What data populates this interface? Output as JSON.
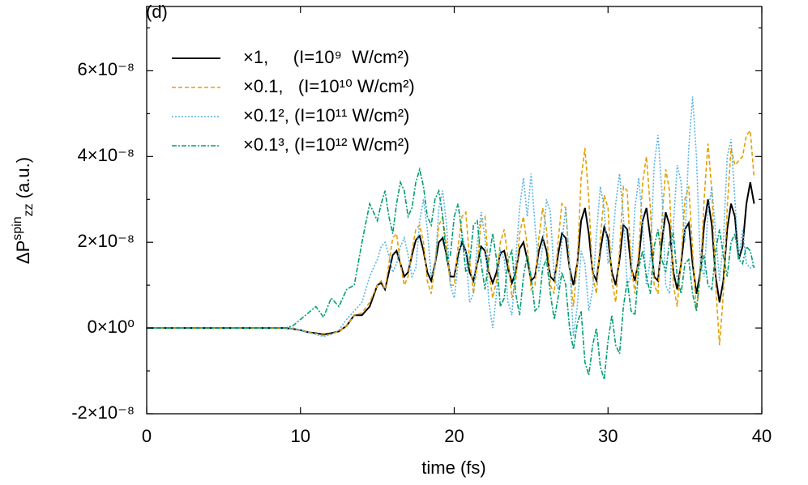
{
  "chart_data": {
    "type": "line",
    "panel_label": "(d)",
    "xlabel": "time (fs)",
    "ylabel": {
      "base": "ΔP",
      "sup": "spin",
      "sub": "zz",
      "unit": " (a.u.)"
    },
    "xlim": [
      0,
      40
    ],
    "xticks": [
      0,
      10,
      20,
      30,
      40
    ],
    "ylim": [
      -2e-08,
      7.5e-08
    ],
    "yticks": [
      {
        "value": -2e-08,
        "label": "-2×10⁻⁸"
      },
      {
        "value": 0,
        "label": "0×10⁰"
      },
      {
        "value": 2e-08,
        "label": "2×10⁻⁸"
      },
      {
        "value": 4e-08,
        "label": "4×10⁻⁸"
      },
      {
        "value": 6e-08,
        "label": "6×10⁻⁸"
      }
    ],
    "minor_yticks": [
      -1e-08,
      1e-08,
      3e-08,
      5e-08,
      7e-08
    ],
    "legend": "upper left",
    "x": [
      0,
      1,
      2,
      3,
      4,
      5,
      6,
      7,
      8,
      9,
      9.5,
      10,
      10.5,
      11,
      11.5,
      12,
      12.5,
      13,
      13.5,
      14,
      14.5,
      15,
      15.25,
      15.5,
      15.75,
      16,
      16.25,
      16.5,
      16.75,
      17,
      17.25,
      17.5,
      17.75,
      18,
      18.25,
      18.5,
      18.75,
      19,
      19.25,
      19.5,
      19.75,
      20,
      20.25,
      20.5,
      20.75,
      21,
      21.25,
      21.5,
      21.75,
      22,
      22.25,
      22.5,
      22.75,
      23,
      23.25,
      23.5,
      23.75,
      24,
      24.25,
      24.5,
      24.75,
      25,
      25.25,
      25.5,
      25.75,
      26,
      26.25,
      26.5,
      26.75,
      27,
      27.25,
      27.5,
      27.75,
      28,
      28.25,
      28.5,
      28.75,
      29,
      29.25,
      29.5,
      29.75,
      30,
      30.25,
      30.5,
      30.75,
      31,
      31.25,
      31.5,
      31.75,
      32,
      32.25,
      32.5,
      32.75,
      33,
      33.25,
      33.5,
      33.75,
      34,
      34.25,
      34.5,
      34.75,
      35,
      35.25,
      35.5,
      35.75,
      36,
      36.25,
      36.5,
      36.75,
      37,
      37.25,
      37.5,
      37.75,
      38,
      38.25,
      38.5,
      38.75,
      39,
      39.25,
      39.5
    ],
    "series": [
      {
        "name": "×1,     (I=10⁹  W/cm²)",
        "color": "#000000",
        "dash": "none",
        "values": [
          0,
          0,
          0,
          0,
          0,
          0,
          0,
          0,
          0,
          0,
          -2e-10,
          -5e-10,
          -1e-09,
          -1.2e-09,
          -1.5e-09,
          -1.2e-09,
          -8e-10,
          5e-10,
          3e-09,
          3e-09,
          5e-09,
          1e-08,
          1.05e-08,
          9e-09,
          1.3e-08,
          1.7e-08,
          1.8e-08,
          1.5e-08,
          1.2e-08,
          1.3e-08,
          1.7e-08,
          2.05e-08,
          2.15e-08,
          1.8e-08,
          1.3e-08,
          1.1e-08,
          1.5e-08,
          2e-08,
          2.1e-08,
          1.7e-08,
          1.2e-08,
          1.2e-08,
          1.7e-08,
          2e-08,
          1.8e-08,
          1.3e-08,
          1.1e-08,
          1.5e-08,
          1.9e-08,
          1.8e-08,
          1.3e-08,
          1.05e-08,
          1.3e-08,
          1.75e-08,
          1.8e-08,
          1.4e-08,
          1.05e-08,
          1.3e-08,
          1.85e-08,
          2e-08,
          1.6e-08,
          1.1e-08,
          1.2e-08,
          1.8e-08,
          2.1e-08,
          1.8e-08,
          1.2e-08,
          1.1e-08,
          1.7e-08,
          2.2e-08,
          2.1e-08,
          1.4e-08,
          1e-08,
          1.5e-08,
          2.5e-08,
          2.8e-08,
          2.2e-08,
          1.3e-08,
          1.1e-08,
          1.8e-08,
          2.35e-08,
          2.1e-08,
          1.3e-08,
          1e-08,
          1.6e-08,
          2.4e-08,
          2.3e-08,
          1.4e-08,
          1.1e-08,
          1.6e-08,
          2.5e-08,
          2.8e-08,
          2.1e-08,
          1.2e-08,
          1.1e-08,
          2e-08,
          2.7e-08,
          2.4e-08,
          1.3e-08,
          9e-09,
          1.5e-08,
          2.3e-08,
          2.45e-08,
          1.5e-08,
          8e-09,
          1.3e-08,
          2.4e-08,
          3e-08,
          2.4e-08,
          1.2e-08,
          6e-09,
          1.1e-08,
          2.3e-08,
          2.9e-08,
          2.6e-08,
          1.6e-08,
          1.9e-08,
          2.9e-08,
          3.4e-08,
          2.9e-08
        ]
      },
      {
        "name": "×0.1,   (I=10¹⁰ W/cm²)",
        "color": "#e69f00",
        "dash": "5,3",
        "values": [
          0,
          0,
          0,
          0,
          0,
          0,
          0,
          0,
          0,
          0,
          -2e-10,
          -5e-10,
          -1e-09,
          -1.3e-09,
          -1.7e-09,
          -1.4e-09,
          -8e-10,
          5e-10,
          3e-09,
          3.5e-09,
          6e-09,
          1e-08,
          1.1e-08,
          9e-09,
          1.5e-08,
          2.1e-08,
          2.2e-08,
          1.5e-08,
          1e-08,
          1.2e-08,
          1.8e-08,
          2.3e-08,
          2.4e-08,
          2e-08,
          1.1e-08,
          8e-09,
          1.5e-08,
          2.4e-08,
          2.6e-08,
          1.9e-08,
          1e-08,
          1e-08,
          1.9e-08,
          2.6e-08,
          2.7e-08,
          1.6e-08,
          8e-09,
          1.5e-08,
          2.5e-08,
          2.6e-08,
          1.3e-08,
          7e-09,
          1.1e-08,
          2e-08,
          2.3e-08,
          1.6e-08,
          7e-09,
          1.1e-08,
          2.2e-08,
          2.6e-08,
          1.9e-08,
          9e-09,
          1e-08,
          2.1e-08,
          2.8e-08,
          2.3e-08,
          1e-08,
          8e-09,
          2e-08,
          2.9e-08,
          2.8e-08,
          1.4e-08,
          5e-09,
          1.5e-08,
          3.5e-08,
          4.2e-08,
          3e-08,
          1.2e-08,
          8e-09,
          2.1e-08,
          3.1e-08,
          2.8e-08,
          1.1e-08,
          6e-09,
          1.8e-08,
          3.3e-08,
          3.2e-08,
          1.5e-08,
          8e-09,
          1.8e-08,
          3.4e-08,
          4e-08,
          2.8e-08,
          1e-08,
          8e-09,
          2.5e-08,
          3.7e-08,
          3.2e-08,
          1e-08,
          5e-09,
          1.6e-08,
          3e-08,
          3.3e-08,
          1.8e-08,
          4e-09,
          1.2e-08,
          3e-08,
          4.3e-08,
          3.2e-08,
          1e-08,
          -4e-09,
          8e-09,
          2.8e-08,
          4.2e-08,
          3.8e-08,
          3.9e-08,
          4e-08,
          4.5e-08,
          4.6e-08,
          3.5e-08
        ]
      },
      {
        "name": "×0.1², (I=10¹¹ W/cm²)",
        "color": "#56b4e9",
        "dash": "2,2",
        "values": [
          0,
          0,
          0,
          0,
          0,
          0,
          0,
          0,
          0,
          0,
          0,
          -5e-10,
          -1e-09,
          -1.5e-09,
          -2e-09,
          -1.5e-09,
          -5e-10,
          2e-09,
          4e-09,
          6e-09,
          1.2e-08,
          1.6e-08,
          1.9e-08,
          2e-08,
          1.7e-08,
          1.3e-08,
          1.5e-08,
          1.9e-08,
          2.1e-08,
          1.7e-08,
          1.2e-08,
          1.4e-08,
          2.5e-08,
          3e-08,
          2.3e-08,
          1.2e-08,
          1.4e-08,
          2.8e-08,
          3.2e-08,
          2.4e-08,
          1e-08,
          7e-09,
          1.5e-08,
          2.2e-08,
          1.8e-08,
          6e-09,
          8e-09,
          2e-08,
          2.7e-08,
          2.1e-08,
          6e-09,
          0,
          8e-09,
          1.8e-08,
          1.6e-08,
          6e-09,
          3e-09,
          1.6e-08,
          2.8e-08,
          3.5e-08,
          2.6e-08,
          3.6e-08,
          2.4e-08,
          1.3e-08,
          1.9e-08,
          3e-08,
          2.7e-08,
          1.2e-08,
          9e-09,
          2e-08,
          2.8e-08,
          1.5e-08,
          -2e-09,
          5e-09,
          1.8e-08,
          1.5e-08,
          4e-09,
          9e-09,
          2.2e-08,
          3.3e-08,
          2.8e-08,
          1.5e-08,
          1.8e-08,
          2.9e-08,
          3.6e-08,
          2.6e-08,
          1e-08,
          1.2e-08,
          2.8e-08,
          3.5e-08,
          2.4e-08,
          1e-08,
          1.6e-08,
          3.8e-08,
          4.5e-08,
          3.2e-08,
          1e-08,
          8e-09,
          2.4e-08,
          3.8e-08,
          3.4e-08,
          2e-08,
          4.2e-08,
          5.4e-08,
          4e-08,
          1.5e-08,
          1.2e-08,
          2.7e-08,
          3.3e-08,
          2.2e-08,
          1.1e-08,
          2e-08,
          4e-08,
          4.4e-08,
          3e-08,
          1.6e-08,
          2.3e-08,
          1.5e-08,
          1.4e-08,
          1.5e-08
        ]
      },
      {
        "name": "×0.1³, (I=10¹² W/cm²)",
        "color": "#009e73",
        "dash": "6,2,2,2",
        "values": [
          0,
          0,
          0,
          0,
          0,
          0,
          0,
          0,
          0,
          0,
          5e-10,
          2e-09,
          3.5e-09,
          5e-09,
          2.5e-09,
          7e-09,
          5e-09,
          9e-09,
          1e-08,
          2e-08,
          2.9e-08,
          2.5e-08,
          2.9e-08,
          3.2e-08,
          2.6e-08,
          2.2e-08,
          2.9e-08,
          3.4e-08,
          3.2e-08,
          2.6e-08,
          2.8e-08,
          3.4e-08,
          3.7e-08,
          3.3e-08,
          2.6e-08,
          2.4e-08,
          3e-08,
          3.2e-08,
          2.6e-08,
          1.6e-08,
          1.7e-08,
          2.6e-08,
          2.9e-08,
          2.2e-08,
          1.3e-08,
          1.5e-08,
          2.4e-08,
          2.5e-08,
          1.5e-08,
          9e-09,
          1.6e-08,
          2.2e-08,
          1.6e-08,
          5e-09,
          7e-09,
          1.6e-08,
          1.8e-08,
          8e-09,
          3e-09,
          1.2e-08,
          1.7e-08,
          1.2e-08,
          4e-09,
          5e-09,
          1.4e-08,
          1.6e-08,
          8e-09,
          2e-09,
          7e-09,
          1.3e-08,
          1e-08,
          0,
          -5e-09,
          1e-09,
          4e-09,
          -8e-09,
          -1.1e-08,
          -4e-09,
          0,
          -9e-09,
          -1.2e-08,
          -3e-09,
          3e-09,
          -4e-09,
          -6e-09,
          5e-09,
          1.1e-08,
          4e-09,
          3e-09,
          1.4e-08,
          1.8e-08,
          1.2e-08,
          8e-09,
          1.9e-08,
          2.3e-08,
          1.6e-08,
          1.3e-08,
          2e-08,
          2.2e-08,
          1.2e-08,
          8e-09,
          1.5e-08,
          1.6e-08,
          8e-09,
          4e-09,
          1.3e-08,
          1.7e-08,
          1e-08,
          9e-09,
          1.8e-08,
          2.3e-08,
          1.7e-08,
          1.2e-08,
          2e-08,
          2.2e-08,
          1.6e-08,
          1.5e-08,
          1.9e-08,
          1.8e-08,
          1.4e-08
        ]
      }
    ]
  }
}
